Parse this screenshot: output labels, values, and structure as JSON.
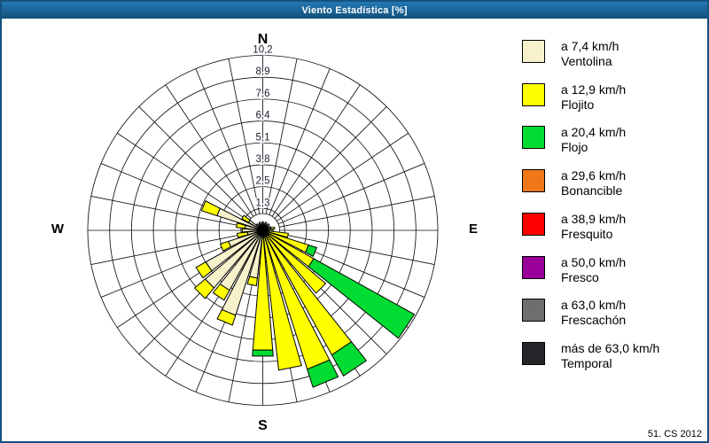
{
  "window": {
    "title": "Viento Estadística [%]"
  },
  "caption": "51. CS 2012",
  "chart_data": {
    "type": "windrose-stacked-bar-polar",
    "units": "%",
    "sectors": 32,
    "sector_step_deg": 11.25,
    "bar_width_deg": 9.5,
    "max": 10.2,
    "ring_values": [
      1.275,
      2.55,
      3.825,
      5.1,
      6.375,
      7.65,
      8.925,
      10.2
    ],
    "ring_labels": [
      "1,3",
      "2,5",
      "3,8",
      "5,1",
      "6,4",
      "7,6",
      "8,9",
      "10,2"
    ],
    "compass": {
      "n": "N",
      "e": "E",
      "s": "S",
      "w": "W"
    },
    "grid": {
      "spokes": 32,
      "rings": 8,
      "inner_hole": true
    },
    "direction_order": "N clockwise, 11.25 deg steps",
    "series": [
      {
        "name": "Ventolina",
        "label": "a 7,4 km/h",
        "color": "#F7F2CC",
        "values": [
          0.5,
          0.4,
          0.5,
          0.4,
          0.5,
          0.4,
          0.5,
          0.5,
          0.6,
          0.3,
          0.3,
          0.4,
          0.4,
          0.4,
          0.4,
          0.4,
          0.4,
          2.8,
          5.2,
          4.0,
          4.4,
          3.8,
          2.1,
          0.9,
          1.2,
          1.05,
          2.8,
          0.95,
          0.5,
          0.4,
          0.5,
          0.4
        ]
      },
      {
        "name": "Flojito",
        "label": "a 12,9 km/h",
        "color": "#FFFF00",
        "values": [
          0,
          0,
          0,
          0,
          0,
          0,
          0,
          0.2,
          0,
          1.2,
          2.5,
          3.0,
          4.4,
          7.9,
          8.1,
          7.8,
          6.6,
          0.45,
          0.6,
          0.65,
          0.8,
          0.65,
          0.5,
          0.6,
          0,
          0.5,
          0.95,
          0.45,
          0,
          0,
          0,
          0
        ]
      },
      {
        "name": "Flojo",
        "label": "a 20,4 km/h",
        "color": "#00DC32",
        "values": [
          0,
          0,
          0,
          0,
          0,
          0,
          0,
          0,
          0,
          0,
          0.5,
          6.7,
          0,
          1.4,
          1.1,
          0,
          0.35,
          0,
          0,
          0,
          0,
          0,
          0,
          0,
          0,
          0,
          0,
          0,
          0,
          0,
          0,
          0
        ]
      },
      {
        "name": "Bonancible",
        "label": "a 29,6 km/h",
        "color": "#F07818",
        "values": [
          0,
          0,
          0,
          0,
          0,
          0,
          0,
          0,
          0,
          0,
          0,
          0,
          0,
          0,
          0,
          0,
          0,
          0,
          0,
          0,
          0,
          0,
          0,
          0,
          0,
          0,
          0,
          0,
          0,
          0,
          0,
          0
        ]
      },
      {
        "name": "Fresquito",
        "label": "a 38,9 km/h",
        "color": "#FF0000",
        "values": [
          0,
          0,
          0,
          0,
          0,
          0,
          0,
          0,
          0,
          0,
          0,
          0,
          0,
          0,
          0,
          0,
          0,
          0,
          0,
          0,
          0,
          0,
          0,
          0,
          0,
          0,
          0,
          0,
          0,
          0,
          0,
          0
        ]
      },
      {
        "name": "Fresco",
        "label": "a 50,0 km/h",
        "color": "#990099",
        "values": [
          0,
          0,
          0,
          0,
          0,
          0,
          0,
          0,
          0,
          0,
          0,
          0,
          0,
          0,
          0,
          0,
          0,
          0,
          0,
          0,
          0,
          0,
          0,
          0,
          0,
          0,
          0,
          0,
          0,
          0,
          0,
          0
        ]
      },
      {
        "name": "Frescachón",
        "label": "a 63,0 km/h",
        "color": "#6E6E6E",
        "values": [
          0,
          0,
          0,
          0,
          0,
          0,
          0,
          0,
          0,
          0,
          0,
          0,
          0,
          0,
          0,
          0,
          0,
          0,
          0,
          0,
          0,
          0,
          0,
          0,
          0,
          0,
          0,
          0,
          0,
          0,
          0,
          0
        ]
      },
      {
        "name": "Temporal",
        "label": "más de 63,0 km/h",
        "color": "#26262A",
        "values": [
          0,
          0,
          0,
          0,
          0,
          0,
          0,
          0,
          0,
          0,
          0,
          0,
          0,
          0,
          0,
          0,
          0,
          0,
          0,
          0,
          0,
          0,
          0,
          0,
          0,
          0,
          0,
          0,
          0,
          0,
          0,
          0
        ]
      }
    ],
    "legend_position": "right",
    "title": "Viento Estadística [%]"
  }
}
